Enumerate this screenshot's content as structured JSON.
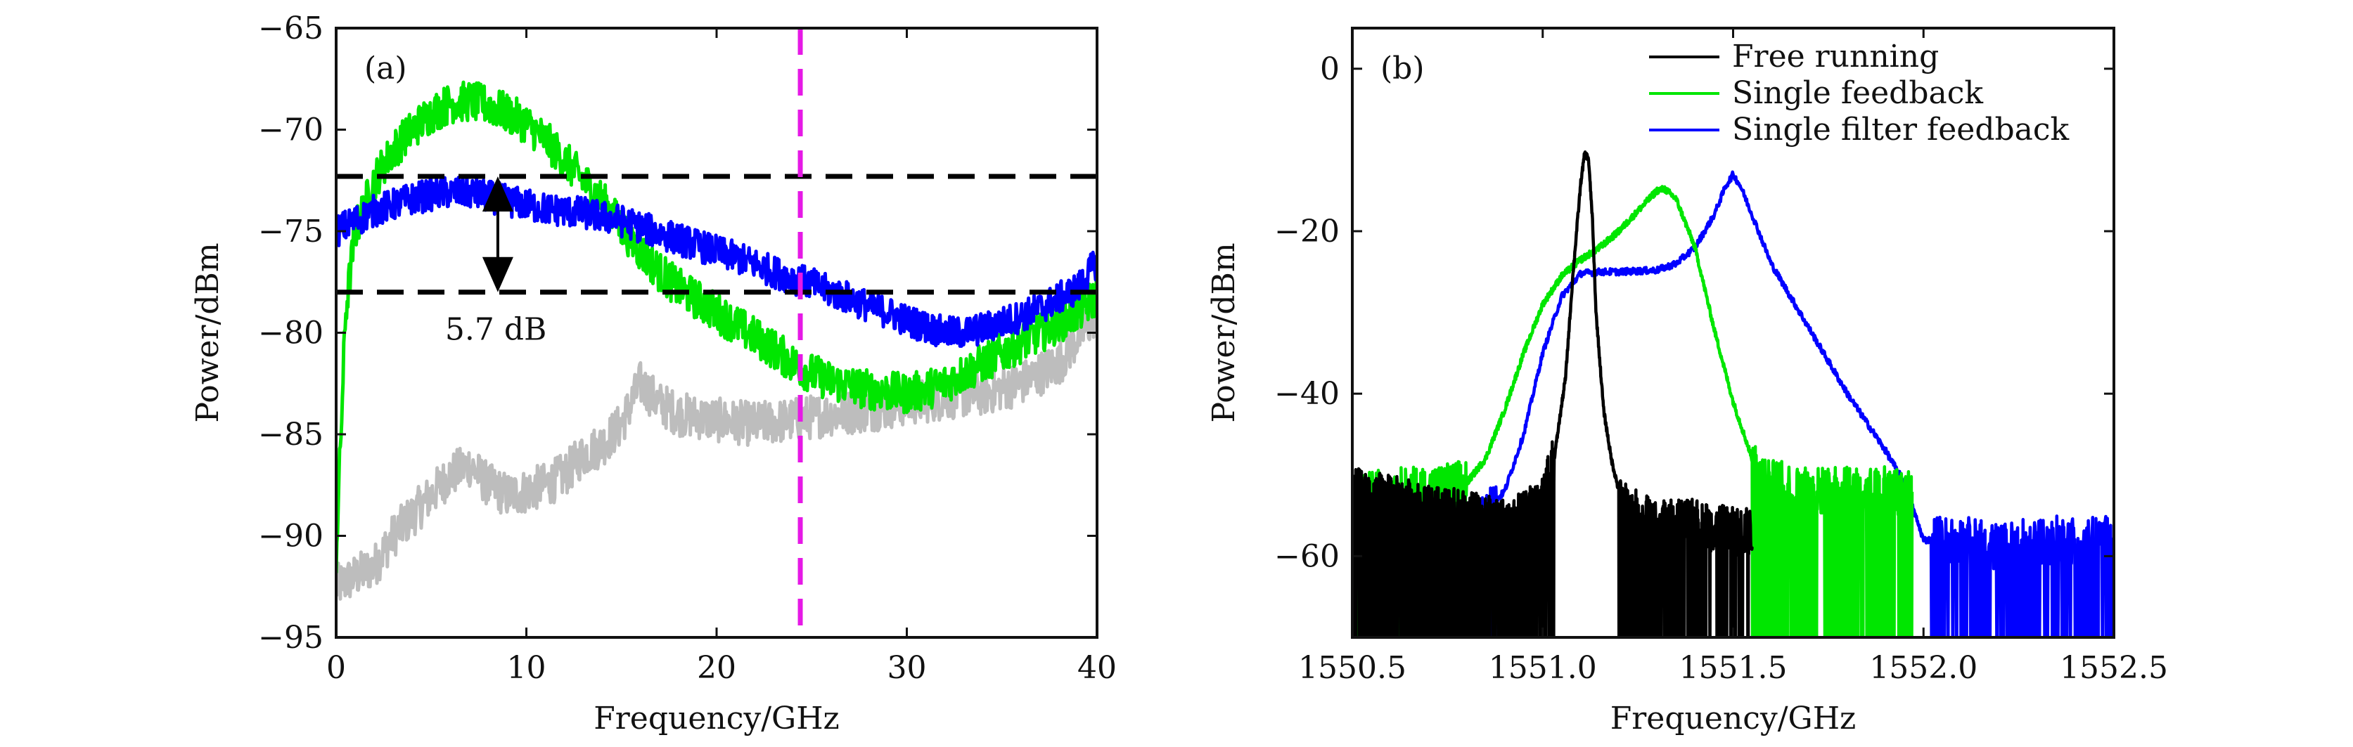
{
  "chart_data": [
    {
      "panel": "(a)",
      "type": "line",
      "xlabel": "Frequency/GHz",
      "ylabel": "Power/dBm",
      "xlim": [
        0,
        40
      ],
      "ylim": [
        -95,
        -65
      ],
      "xticks": [
        0,
        10,
        20,
        30,
        40
      ],
      "yticks": [
        -95,
        -90,
        -85,
        -80,
        -75,
        -70,
        -65
      ],
      "grid": false,
      "legend": "none",
      "series": [
        {
          "color": "#bdbdbd",
          "x": [
            0,
            1,
            2,
            3,
            4,
            5,
            6,
            7,
            8,
            9,
            10,
            11,
            12,
            13,
            14,
            15,
            16,
            17,
            18,
            20,
            22,
            24,
            26,
            28,
            30,
            32,
            34,
            36,
            38,
            40
          ],
          "y": [
            -92.5,
            -92,
            -91.5,
            -90,
            -89,
            -88,
            -87,
            -86.5,
            -87.5,
            -88,
            -87.8,
            -87.5,
            -87,
            -86,
            -85.5,
            -84.5,
            -82.5,
            -83.5,
            -84,
            -84.3,
            -84.5,
            -84.3,
            -84,
            -83.8,
            -83.5,
            -83.2,
            -83,
            -82.5,
            -81.5,
            -79
          ]
        },
        {
          "color": "#00e600",
          "x": [
            0,
            0.5,
            1,
            2,
            3,
            4,
            5,
            6,
            7,
            8,
            9,
            10,
            11,
            12,
            13,
            14,
            15,
            16,
            17,
            18,
            19,
            20,
            21,
            22,
            23,
            24,
            25,
            26,
            27,
            28,
            29,
            30,
            31,
            32,
            33,
            34,
            35,
            36,
            37,
            38,
            39,
            40
          ],
          "y": [
            -91,
            -79,
            -75,
            -72.5,
            -71,
            -70,
            -69.2,
            -68.7,
            -68.6,
            -68.8,
            -69.2,
            -69.7,
            -70.5,
            -71.5,
            -72.5,
            -73.5,
            -74.8,
            -76,
            -77,
            -77.8,
            -78.4,
            -79,
            -79.6,
            -80.2,
            -80.8,
            -81.5,
            -82,
            -82.4,
            -82.6,
            -82.8,
            -82.9,
            -83,
            -82.8,
            -82.5,
            -82,
            -81.5,
            -81,
            -80.5,
            -80,
            -79.5,
            -79,
            -78.2
          ]
        },
        {
          "color": "#0000ff",
          "x": [
            0,
            1,
            2,
            3,
            4,
            5,
            6,
            7,
            8,
            9,
            10,
            11,
            12,
            13,
            14,
            15,
            16,
            17,
            18,
            19,
            20,
            21,
            22,
            23,
            24,
            25,
            26,
            27,
            28,
            29,
            30,
            31,
            32,
            33,
            34,
            35,
            36,
            37,
            38,
            39,
            40
          ],
          "y": [
            -75,
            -74.5,
            -74,
            -73.7,
            -73.4,
            -73.2,
            -73.1,
            -73.1,
            -73.3,
            -73.5,
            -73.7,
            -73.9,
            -74,
            -74.1,
            -74.3,
            -74.5,
            -74.8,
            -75.1,
            -75.4,
            -75.7,
            -76,
            -76.3,
            -76.6,
            -77,
            -77.3,
            -77.6,
            -78,
            -78.3,
            -78.7,
            -79,
            -79.4,
            -79.7,
            -80,
            -80,
            -79.8,
            -79.5,
            -79.2,
            -78.8,
            -78.3,
            -77.8,
            -76.5
          ]
        }
      ],
      "reference_lines": {
        "horizontal_dashed": [
          -72.3,
          -78
        ],
        "vertical_dashed": {
          "x": 24.4,
          "color": "#e619e6"
        }
      },
      "annotation": {
        "text": "5.7 dB",
        "arrow_x": 8.5,
        "arrow_from": -72.3,
        "arrow_to": -78
      }
    },
    {
      "panel": "(b)",
      "type": "line",
      "xlabel": "Frequency/GHz",
      "ylabel": "Power/dBm",
      "xlim": [
        1550.5,
        1552.5
      ],
      "ylim": [
        -70,
        5
      ],
      "xticks": [
        1550.5,
        1551.0,
        1551.5,
        1552.0,
        1552.5
      ],
      "xtick_labels": [
        "1550.5",
        "1551.0",
        "1551.5",
        "1552.0",
        "1552.5"
      ],
      "yticks": [
        -60,
        -40,
        -20,
        0
      ],
      "grid": false,
      "legend": "top-right",
      "series": [
        {
          "name": "Free running",
          "color": "#000000",
          "x": [
            1550.5,
            1550.6,
            1550.7,
            1550.8,
            1550.9,
            1550.95,
            1551.0,
            1551.03,
            1551.06,
            1551.08,
            1551.1,
            1551.11,
            1551.12,
            1551.13,
            1551.14,
            1551.16,
            1551.18,
            1551.2,
            1551.22,
            1551.25,
            1551.3,
            1551.4,
            1551.5,
            1551.55
          ],
          "y": [
            -52,
            -53,
            -54,
            -55,
            -56,
            -55,
            -53,
            -48,
            -38,
            -25,
            -14,
            -10.5,
            -11,
            -18,
            -30,
            -42,
            -48,
            -52,
            -54,
            -55,
            -56,
            -56,
            -57,
            -57
          ]
        },
        {
          "name": "Single feedback",
          "color": "#00e600",
          "x": [
            1550.5,
            1550.6,
            1550.7,
            1550.8,
            1550.85,
            1550.9,
            1550.95,
            1551.0,
            1551.05,
            1551.1,
            1551.15,
            1551.2,
            1551.25,
            1551.3,
            1551.32,
            1551.35,
            1551.4,
            1551.45,
            1551.5,
            1551.55,
            1551.6,
            1551.7,
            1551.8,
            1551.9,
            1552.0
          ],
          "y": [
            -53,
            -52,
            -52,
            -51,
            -48,
            -42,
            -35,
            -29,
            -25.5,
            -23.5,
            -22,
            -20,
            -17.5,
            -15,
            -14.8,
            -16,
            -22,
            -32,
            -41,
            -48,
            -51,
            -52,
            -52,
            -52,
            -52
          ]
        },
        {
          "name": "Single filter feedback",
          "color": "#0000ff",
          "x": [
            1550.5,
            1550.6,
            1550.7,
            1550.8,
            1550.9,
            1550.95,
            1551.0,
            1551.05,
            1551.1,
            1551.15,
            1551.2,
            1551.3,
            1551.35,
            1551.4,
            1551.45,
            1551.48,
            1551.5,
            1551.52,
            1551.55,
            1551.6,
            1551.7,
            1551.8,
            1551.9,
            1551.95,
            1552.0,
            1552.1,
            1552.2,
            1552.3,
            1552.4,
            1552.5
          ],
          "y": [
            -60,
            -59,
            -58,
            -57,
            -52,
            -45,
            -35,
            -28,
            -25.2,
            -25,
            -25,
            -24.8,
            -24,
            -22,
            -18,
            -14.5,
            -13,
            -14.5,
            -18,
            -24,
            -32,
            -40,
            -47,
            -51,
            -58,
            -58,
            -59,
            -58,
            -58,
            -58
          ]
        }
      ]
    }
  ]
}
